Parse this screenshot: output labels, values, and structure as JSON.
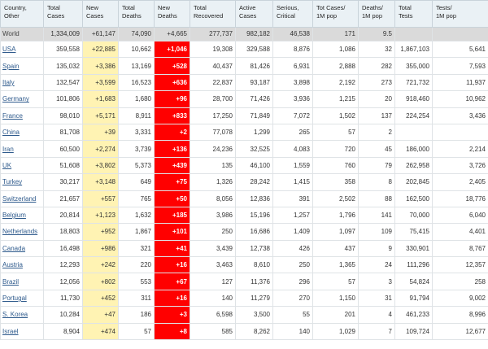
{
  "headers": [
    "Country,\nOther",
    "Total\nCases",
    "New\nCases",
    "Total\nDeaths",
    "New\nDeaths",
    "Total\nRecovered",
    "Active\nCases",
    "Serious,\nCritical",
    "Tot Cases/\n1M pop",
    "Deaths/\n1M pop",
    "Total\nTests",
    "Tests/\n1M pop"
  ],
  "colors": {
    "new_cases_bg": "#fff3b3",
    "new_deaths_bg": "#ff0000",
    "header_bg": "#eaf1f5",
    "world_row_bg": "#dadada",
    "link": "#2e5a8c"
  },
  "world": [
    "World",
    "1,334,009",
    "+61,147",
    "74,090",
    "+4,665",
    "277,737",
    "982,182",
    "46,538",
    "171",
    "9.5",
    "",
    ""
  ],
  "rows": [
    [
      "USA",
      "359,558",
      "+22,885",
      "10,662",
      "+1,046",
      "19,308",
      "329,588",
      "8,876",
      "1,086",
      "32",
      "1,867,103",
      "5,641"
    ],
    [
      "Spain",
      "135,032",
      "+3,386",
      "13,169",
      "+528",
      "40,437",
      "81,426",
      "6,931",
      "2,888",
      "282",
      "355,000",
      "7,593"
    ],
    [
      "Italy",
      "132,547",
      "+3,599",
      "16,523",
      "+636",
      "22,837",
      "93,187",
      "3,898",
      "2,192",
      "273",
      "721,732",
      "11,937"
    ],
    [
      "Germany",
      "101,806",
      "+1,683",
      "1,680",
      "+96",
      "28,700",
      "71,426",
      "3,936",
      "1,215",
      "20",
      "918,460",
      "10,962"
    ],
    [
      "France",
      "98,010",
      "+5,171",
      "8,911",
      "+833",
      "17,250",
      "71,849",
      "7,072",
      "1,502",
      "137",
      "224,254",
      "3,436"
    ],
    [
      "China",
      "81,708",
      "+39",
      "3,331",
      "+2",
      "77,078",
      "1,299",
      "265",
      "57",
      "2",
      "",
      ""
    ],
    [
      "Iran",
      "60,500",
      "+2,274",
      "3,739",
      "+136",
      "24,236",
      "32,525",
      "4,083",
      "720",
      "45",
      "186,000",
      "2,214"
    ],
    [
      "UK",
      "51,608",
      "+3,802",
      "5,373",
      "+439",
      "135",
      "46,100",
      "1,559",
      "760",
      "79",
      "262,958",
      "3,726"
    ],
    [
      "Turkey",
      "30,217",
      "+3,148",
      "649",
      "+75",
      "1,326",
      "28,242",
      "1,415",
      "358",
      "8",
      "202,845",
      "2,405"
    ],
    [
      "Switzerland",
      "21,657",
      "+557",
      "765",
      "+50",
      "8,056",
      "12,836",
      "391",
      "2,502",
      "88",
      "162,500",
      "18,776"
    ],
    [
      "Belgium",
      "20,814",
      "+1,123",
      "1,632",
      "+185",
      "3,986",
      "15,196",
      "1,257",
      "1,796",
      "141",
      "70,000",
      "6,040"
    ],
    [
      "Netherlands",
      "18,803",
      "+952",
      "1,867",
      "+101",
      "250",
      "16,686",
      "1,409",
      "1,097",
      "109",
      "75,415",
      "4,401"
    ],
    [
      "Canada",
      "16,498",
      "+986",
      "321",
      "+41",
      "3,439",
      "12,738",
      "426",
      "437",
      "9",
      "330,901",
      "8,767"
    ],
    [
      "Austria",
      "12,293",
      "+242",
      "220",
      "+16",
      "3,463",
      "8,610",
      "250",
      "1,365",
      "24",
      "111,296",
      "12,357"
    ],
    [
      "Brazil",
      "12,056",
      "+802",
      "553",
      "+67",
      "127",
      "11,376",
      "296",
      "57",
      "3",
      "54,824",
      "258"
    ],
    [
      "Portugal",
      "11,730",
      "+452",
      "311",
      "+16",
      "140",
      "11,279",
      "270",
      "1,150",
      "31",
      "91,794",
      "9,002"
    ],
    [
      "S. Korea",
      "10,284",
      "+47",
      "186",
      "+3",
      "6,598",
      "3,500",
      "55",
      "201",
      "4",
      "461,233",
      "8,996"
    ],
    [
      "Israel",
      "8,904",
      "+474",
      "57",
      "+8",
      "585",
      "8,262",
      "140",
      "1,029",
      "7",
      "109,724",
      "12,677"
    ]
  ]
}
